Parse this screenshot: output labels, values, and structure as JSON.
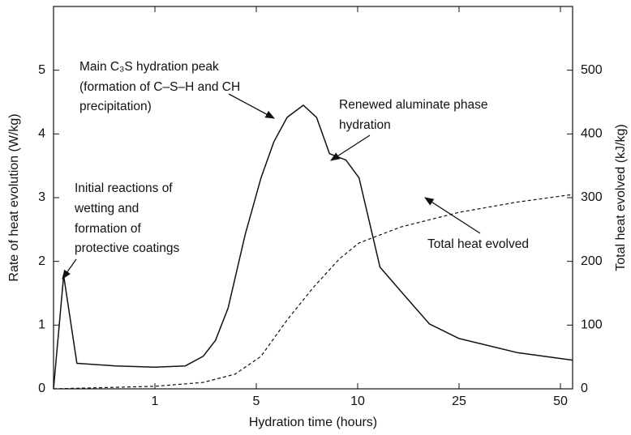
{
  "chart_data": {
    "type": "line",
    "xlabel": "Hydration time (hours)",
    "ylabel": "Rate of heat evolution (W/kg)",
    "y2label": "Total heat evolved (kJ/kg)",
    "xscale": "piecewise",
    "xlim": [
      0,
      53
    ],
    "xticks": [
      1,
      5,
      10,
      25,
      50
    ],
    "ylim": [
      0,
      6
    ],
    "yticks": [
      0,
      1,
      2,
      3,
      4,
      5
    ],
    "y2lim": [
      0,
      600
    ],
    "y2ticks": [
      0,
      100,
      200,
      300,
      400,
      500
    ],
    "x": [
      0,
      0.1,
      0.23,
      0.61,
      1,
      2.2,
      2.9,
      3.39,
      3.89,
      4.56,
      5.23,
      5.87,
      6.52,
      7.32,
      7.97,
      8.61,
      9.42,
      10.2,
      13.3,
      16.4,
      20.6,
      25,
      39.3,
      53
    ],
    "series": [
      {
        "name": "Rate of heat evolution",
        "color": "#111111",
        "dash": "solid",
        "x": [
          0,
          0.1,
          0.23,
          0.61,
          1,
          2.2,
          2.9,
          3.39,
          3.89,
          4.56,
          5.23,
          5.87,
          6.52,
          7.32,
          7.97,
          8.61,
          9.42,
          10.2,
          13.3,
          16.4,
          20.6,
          25,
          39.3,
          53
        ],
        "values": [
          0,
          1.78,
          0.4,
          0.36,
          0.34,
          0.36,
          0.51,
          0.76,
          1.27,
          2.42,
          3.31,
          3.88,
          4.26,
          4.45,
          4.26,
          3.69,
          3.59,
          3.31,
          1.91,
          1.53,
          1.02,
          0.79,
          0.57,
          0.45
        ]
      },
      {
        "name": "Total heat evolved",
        "color": "#111111",
        "dash": "dashed",
        "axis": "y2",
        "x": [
          0,
          1,
          2.9,
          4.16,
          5.23,
          6.52,
          7.81,
          9.1,
          10.2,
          16.4,
          25,
          39.3,
          53
        ],
        "values": [
          0,
          4,
          10,
          23,
          51,
          108,
          159,
          204,
          229,
          254,
          277,
          293,
          305
        ]
      }
    ],
    "annotations": [
      {
        "lines": [
          "Initial reactions of",
          "wetting and",
          "formation of",
          "protective coatings"
        ]
      },
      {
        "lines": [
          "Main C₃S hydration peak",
          "(formation of C–S–H and CH",
          "precipitation)"
        ]
      },
      {
        "lines": [
          "Renewed aluminate phase",
          "hydration"
        ]
      },
      {
        "lines": [
          "Total heat evolved"
        ]
      }
    ]
  }
}
